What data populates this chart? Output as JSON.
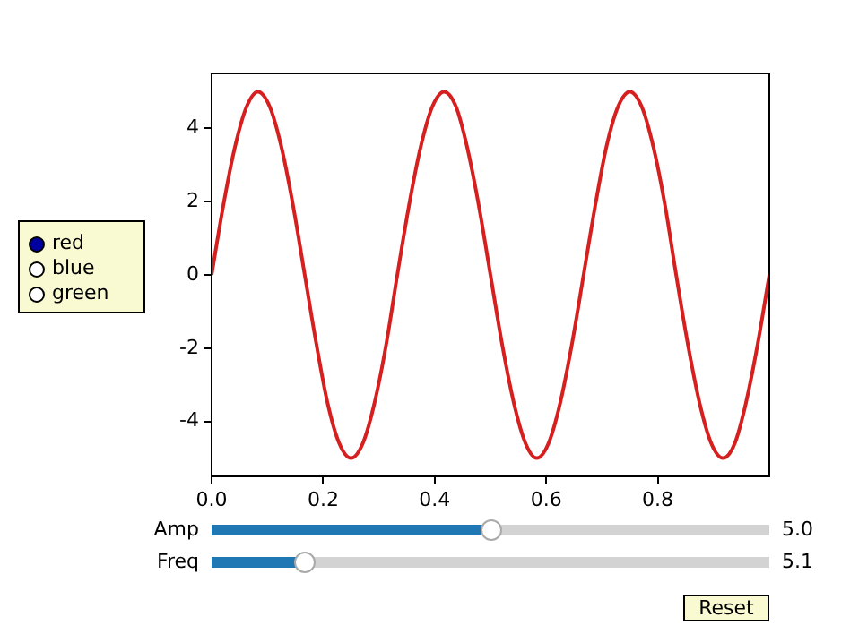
{
  "chart_data": {
    "type": "line",
    "x": [
      0,
      0.021,
      0.042,
      0.063,
      0.083,
      0.104,
      0.125,
      0.146,
      0.167,
      0.188,
      0.208,
      0.229,
      0.25,
      0.271,
      0.292,
      0.313,
      0.333,
      0.354,
      0.375,
      0.396,
      0.417,
      0.438,
      0.458,
      0.479,
      0.5,
      0.521,
      0.542,
      0.563,
      0.583,
      0.604,
      0.625,
      0.646,
      0.667,
      0.688,
      0.708,
      0.729,
      0.75,
      0.771,
      0.792,
      0.813,
      0.833,
      0.854,
      0.875,
      0.896,
      0.917,
      0.938,
      0.958,
      0.979,
      1
    ],
    "series": [
      {
        "color": "#d62020",
        "values": [
          0,
          1.9,
          3.5,
          4.6,
          5,
          4.6,
          3.5,
          1.9,
          0,
          -1.9,
          -3.5,
          -4.6,
          -5,
          -4.6,
          -3.5,
          -1.9,
          0,
          1.9,
          3.5,
          4.6,
          5,
          4.6,
          3.5,
          1.9,
          0,
          -1.9,
          -3.5,
          -4.6,
          -5,
          -4.6,
          -3.5,
          -1.9,
          0,
          1.9,
          3.5,
          4.6,
          5,
          4.6,
          3.5,
          1.9,
          0,
          -1.9,
          -3.5,
          -4.6,
          -5,
          -4.6,
          -3.5,
          -1.9,
          0
        ]
      }
    ],
    "xlim": [
      0,
      1
    ],
    "xticks": [
      {
        "value": 0,
        "label": "0.0"
      },
      0.2,
      0.4,
      0.6,
      0.8
    ],
    "ylim": [
      -5.5,
      5.5
    ],
    "yticks": [
      -4,
      -2,
      0,
      2,
      4
    ],
    "grid": false,
    "marker": "none",
    "line_style": "solid",
    "annotations": [
      "red",
      "blue",
      "green",
      "Amp",
      "5.0",
      "Freq",
      "5.1",
      "Reset"
    ]
  }
}
